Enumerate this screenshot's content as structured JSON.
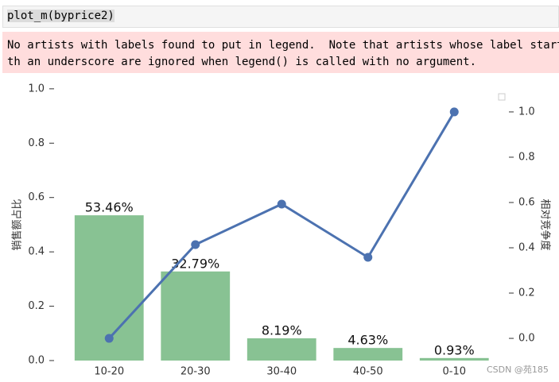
{
  "cell": {
    "code": "plot_m(byprice2)",
    "warning_lines": [
      "No artists with labels found to put in legend.  Note that artists whose label start wi",
      "th an underscore are ignored when legend() is called with no argument."
    ]
  },
  "chart_data": {
    "type": "bar_line",
    "categories": [
      "10-20",
      "20-30",
      "30-40",
      "40-50",
      "0-10"
    ],
    "series": [
      {
        "type": "bar",
        "color": "#88c293",
        "values": [
          0.5346,
          0.3279,
          0.0819,
          0.0463,
          0.0093
        ],
        "value_labels": [
          "53.46%",
          "32.79%",
          "8.19%",
          "4.63%",
          "0.93%"
        ]
      },
      {
        "type": "line",
        "axis": "y2",
        "color": "#4c72b0",
        "values": [
          0.0,
          0.414,
          0.593,
          0.358,
          1.0
        ]
      }
    ],
    "ylabel": "销售额占比",
    "y2label": "相对竞争度",
    "ylim": [
      0,
      1.02
    ],
    "yticks": [
      {
        "value": 0,
        "label": "0.0"
      },
      0.2,
      0.4,
      0.6,
      0.8,
      {
        "value": 1,
        "label": "1.0"
      }
    ],
    "y2lim": [
      -0.098,
      1.126
    ],
    "y2ticks": [
      {
        "value": 0,
        "label": "0.0"
      },
      0.2,
      0.4,
      0.6,
      0.8,
      {
        "value": 1,
        "label": "1.0"
      }
    ],
    "grid": false
  },
  "watermark": "CSDN @苑185"
}
